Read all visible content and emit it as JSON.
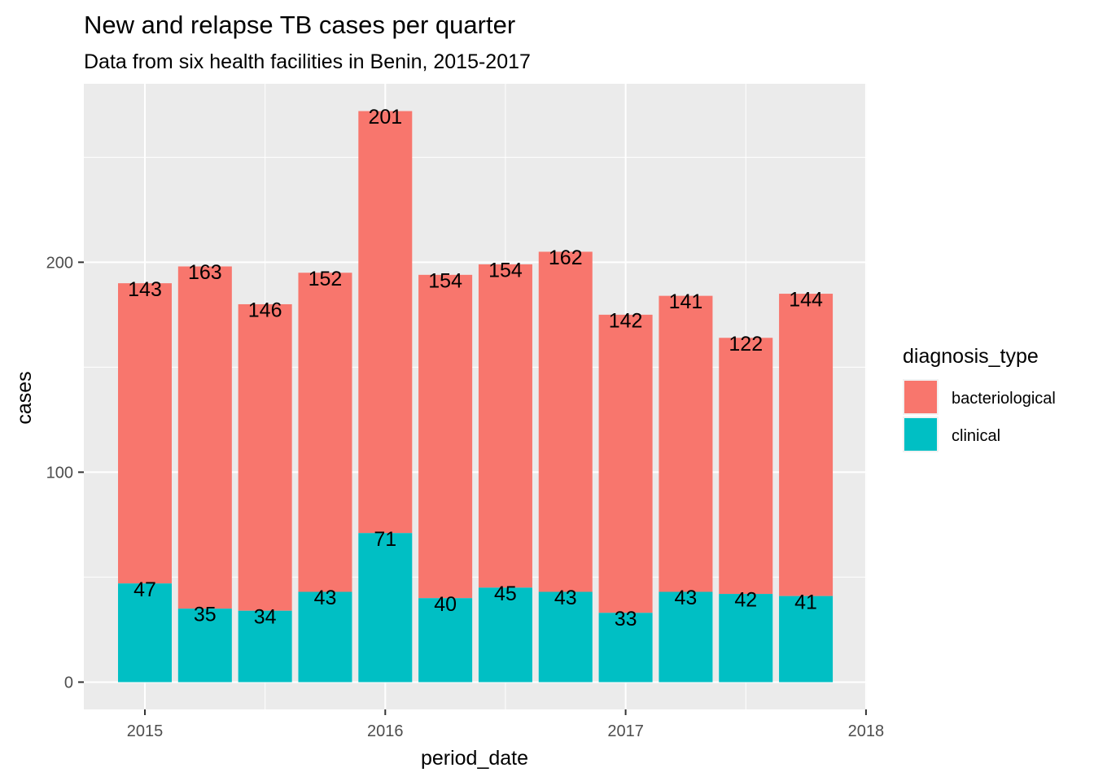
{
  "chart_data": {
    "type": "bar",
    "stacked": true,
    "title": "New and relapse TB cases per quarter",
    "subtitle": "Data from six health facilities in Benin, 2015-2017",
    "xlabel": "period_date",
    "ylabel": "cases",
    "x_ticks": [
      "2015",
      "2016",
      "2017",
      "2018"
    ],
    "y_ticks": [
      0,
      100,
      200
    ],
    "ylim": [
      -13,
      285
    ],
    "categories": [
      "2015 Q1",
      "2015 Q2",
      "2015 Q3",
      "2015 Q4",
      "2016 Q1",
      "2016 Q2",
      "2016 Q3",
      "2016 Q4",
      "2017 Q1",
      "2017 Q2",
      "2017 Q3",
      "2017 Q4"
    ],
    "series": [
      {
        "name": "clinical",
        "color": "#00BFC4",
        "values": [
          47,
          35,
          34,
          43,
          71,
          40,
          45,
          43,
          33,
          43,
          42,
          41
        ]
      },
      {
        "name": "bacteriological",
        "color": "#F8766D",
        "values": [
          143,
          163,
          146,
          152,
          201,
          154,
          154,
          162,
          142,
          141,
          122,
          144
        ]
      }
    ],
    "legend": {
      "title": "diagnosis_type",
      "position": "right",
      "entries": [
        {
          "label": "bacteriological",
          "color": "#F8766D"
        },
        {
          "label": "clinical",
          "color": "#00BFC4"
        }
      ]
    },
    "grid": true,
    "panel_background": "#EBEBEB",
    "grid_color": "#FFFFFF"
  }
}
